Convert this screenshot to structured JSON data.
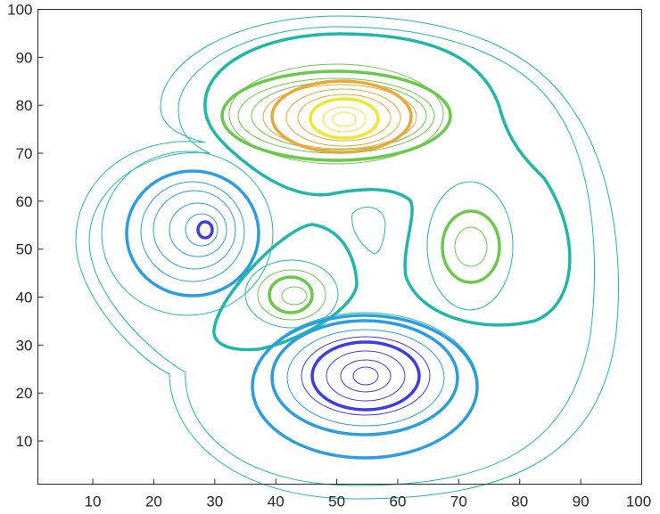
{
  "chart_data": {
    "type": "contour",
    "title": "",
    "xlabel": "",
    "ylabel": "",
    "xlim": [
      1,
      100
    ],
    "ylim": [
      1,
      100
    ],
    "x_ticks": [
      10,
      20,
      30,
      40,
      50,
      60,
      70,
      80,
      90,
      100
    ],
    "y_ticks": [
      10,
      20,
      30,
      40,
      50,
      60,
      70,
      80,
      90,
      100
    ],
    "grid": false,
    "legend": "none",
    "colormap": "parula",
    "peaks": [
      {
        "name": "top-peak",
        "x": 51,
        "y": 77,
        "sign": "high"
      },
      {
        "name": "right-peak",
        "x": 72,
        "y": 50,
        "sign": "high"
      },
      {
        "name": "center-peak",
        "x": 43,
        "y": 40,
        "sign": "high"
      },
      {
        "name": "left-valley",
        "x": 28.5,
        "y": 54,
        "sign": "low"
      },
      {
        "name": "bottom-valley",
        "x": 54.5,
        "y": 23.5,
        "sign": "low"
      }
    ],
    "colors": {
      "low_deep": "#3e3ee0",
      "low": "#2a9ee0",
      "mid": "#1fb8a8",
      "high_green": "#6cc84a",
      "high_orange": "#eaa83a",
      "high_yellow": "#f0e830",
      "axis": "#262626"
    }
  }
}
